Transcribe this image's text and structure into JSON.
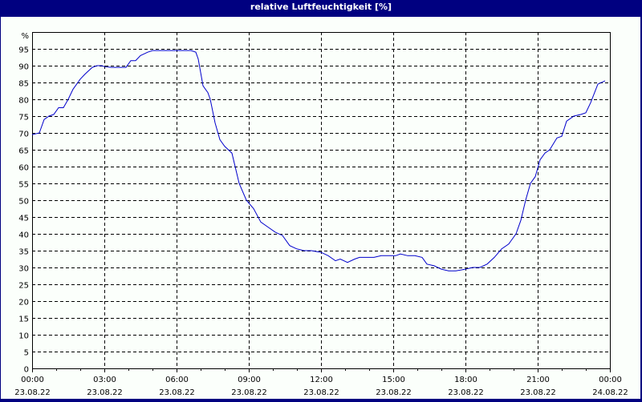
{
  "title": "relative Luftfeuchtigkeit [%]",
  "colors": {
    "frame": "#000080",
    "background": "#fbfffb",
    "line": "#0000cc",
    "grid": "#000000"
  },
  "chart_data": {
    "type": "line",
    "title": "relative Luftfeuchtigkeit [%]",
    "xlabel": "",
    "ylabel": "%",
    "ylim": [
      0,
      100
    ],
    "grid": true,
    "y_ticks": [
      0,
      5,
      10,
      15,
      20,
      25,
      30,
      35,
      40,
      45,
      50,
      55,
      60,
      65,
      70,
      75,
      80,
      85,
      90,
      95
    ],
    "y_unit_label": "%",
    "x_ticks": [
      {
        "time": "00:00",
        "date": "23.08.22"
      },
      {
        "time": "03:00",
        "date": "23.08.22"
      },
      {
        "time": "06:00",
        "date": "23.08.22"
      },
      {
        "time": "09:00",
        "date": "23.08.22"
      },
      {
        "time": "12:00",
        "date": "23.08.22"
      },
      {
        "time": "15:00",
        "date": "23.08.22"
      },
      {
        "time": "18:00",
        "date": "23.08.22"
      },
      {
        "time": "21:00",
        "date": "23.08.22"
      },
      {
        "time": "00:00",
        "date": "24.08.22"
      }
    ],
    "series": [
      {
        "name": "relative Luftfeuchtigkeit",
        "x_hours": [
          0,
          0.3,
          0.5,
          0.7,
          0.9,
          1.1,
          1.3,
          1.5,
          1.7,
          2.0,
          2.2,
          2.5,
          2.7,
          2.9,
          3.0,
          3.3,
          3.6,
          3.9,
          4.1,
          4.3,
          4.5,
          4.8,
          5.0,
          5.3,
          5.6,
          6.0,
          6.3,
          6.6,
          6.8,
          6.9,
          7.1,
          7.3,
          7.4,
          7.6,
          7.8,
          8.0,
          8.3,
          8.6,
          8.9,
          9.2,
          9.5,
          9.8,
          10.1,
          10.4,
          10.7,
          11.0,
          11.3,
          11.6,
          12.0,
          12.3,
          12.6,
          12.8,
          13.1,
          13.4,
          13.6,
          13.9,
          14.2,
          14.5,
          14.8,
          15.1,
          15.3,
          15.6,
          15.9,
          16.2,
          16.4,
          16.7,
          17.0,
          17.3,
          17.6,
          18.0,
          18.3,
          18.6,
          18.9,
          19.2,
          19.5,
          19.8,
          20.1,
          20.3,
          20.5,
          20.7,
          20.9,
          21.1,
          21.3,
          21.5,
          21.8,
          22.0,
          22.2,
          22.5,
          22.8,
          23.0,
          23.2,
          23.5,
          23.8
        ],
        "values": [
          69.5,
          70,
          74,
          75,
          75.5,
          77.5,
          77.5,
          80,
          83,
          86,
          87.5,
          89.5,
          90,
          90,
          89.7,
          89.5,
          89.5,
          89.5,
          91.5,
          91.5,
          93,
          94,
          94.5,
          94.5,
          94.5,
          94.5,
          94.5,
          94.5,
          94,
          92,
          84,
          82,
          80,
          73,
          68,
          66,
          64,
          55,
          50,
          47.5,
          43.5,
          42,
          40.5,
          39.5,
          36.5,
          35.5,
          35,
          35,
          34.5,
          33.5,
          32,
          32.5,
          31.5,
          32.5,
          33,
          33,
          33,
          33.5,
          33.5,
          33.5,
          34,
          33.5,
          33.5,
          33,
          31,
          30.5,
          29.5,
          29,
          29,
          29.5,
          30,
          30,
          31,
          33,
          35.5,
          37,
          40,
          44,
          50,
          55,
          57,
          62,
          64,
          65,
          68.5,
          69,
          73.5,
          75,
          75.5,
          76,
          79,
          84.5,
          85.5
        ]
      }
    ]
  }
}
